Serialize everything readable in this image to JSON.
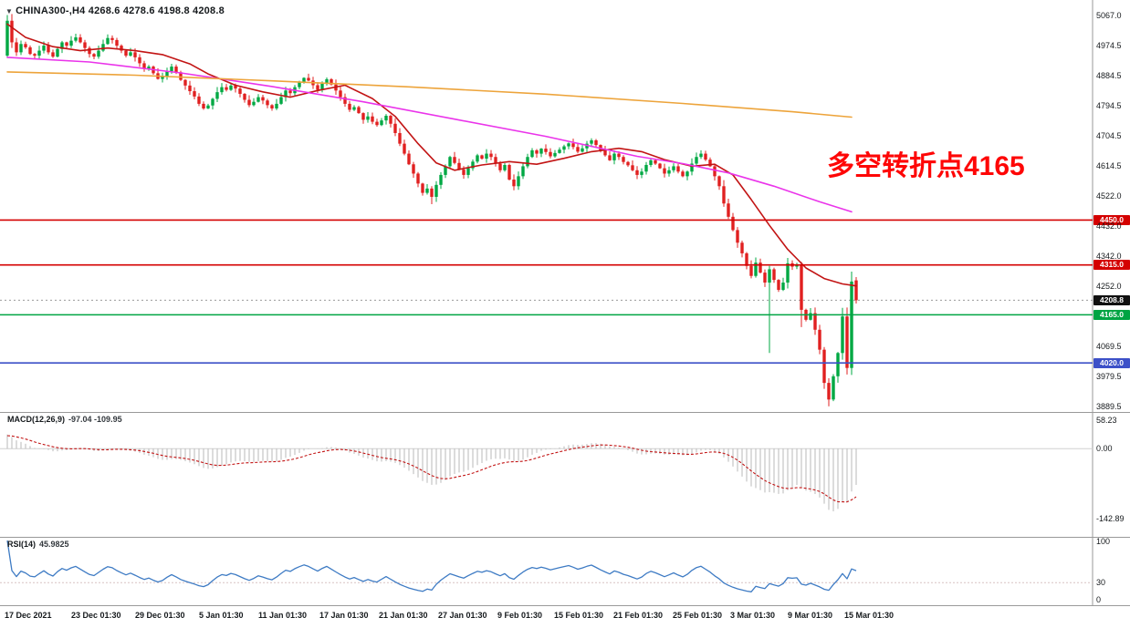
{
  "header": {
    "symbol_info": "CHINA300-,H4 4268.6 4278.6 4198.8 4208.8",
    "dropdown_icon": "triangle-down-icon"
  },
  "annotation": {
    "text": "多空转折点4165",
    "color": "#fe0606"
  },
  "chart_data": {
    "type": "candlestick",
    "symbol": "CHINA300-",
    "timeframe": "H4",
    "ohlc_current": {
      "open": 4268.6,
      "high": 4278.6,
      "low": 4198.8,
      "close": 4208.8
    },
    "ylim": [
      3878,
      5085
    ],
    "price_axis": {
      "labels": [
        "5067.0",
        "4974.5",
        "4884.5",
        "4794.5",
        "4704.5",
        "4614.5",
        "4522.0",
        "4432.0",
        "4342.0",
        "4252.0",
        "4069.5",
        "3979.5",
        "3889.5"
      ],
      "values": [
        5067,
        4974.5,
        4884.5,
        4794.5,
        4704.5,
        4614.5,
        4522,
        4432,
        4342,
        4252,
        4069.5,
        3979.5,
        3889.5
      ]
    },
    "candles": {
      "closes": [
        5050,
        4985,
        4955,
        4980,
        4970,
        4950,
        4945,
        4960,
        4975,
        4955,
        4942,
        4965,
        4985,
        4975,
        4990,
        5000,
        4985,
        4968,
        4950,
        4942,
        4960,
        4980,
        4998,
        4992,
        4975,
        4960,
        4945,
        4955,
        4940,
        4922,
        4905,
        4912,
        4892,
        4875,
        4882,
        4898,
        4912,
        4895,
        4872,
        4855,
        4838,
        4822,
        4800,
        4786,
        4795,
        4815,
        4835,
        4850,
        4842,
        4855,
        4846,
        4830,
        4812,
        4796,
        4806,
        4820,
        4810,
        4796,
        4786,
        4800,
        4820,
        4840,
        4832,
        4850,
        4865,
        4878,
        4870,
        4856,
        4842,
        4860,
        4874,
        4858,
        4840,
        4820,
        4800,
        4782,
        4790,
        4772,
        4752,
        4762,
        4746,
        4736,
        4750,
        4764,
        4740,
        4712,
        4680,
        4650,
        4618,
        4590,
        4560,
        4532,
        4545,
        4520,
        4556,
        4586,
        4612,
        4640,
        4622,
        4602,
        4586,
        4606,
        4626,
        4645,
        4635,
        4650,
        4640,
        4620,
        4600,
        4616,
        4572,
        4552,
        4582,
        4612,
        4640,
        4660,
        4650,
        4665,
        4655,
        4642,
        4652,
        4662,
        4672,
        4681,
        4670,
        4656,
        4666,
        4680,
        4690,
        4676,
        4660,
        4645,
        4630,
        4650,
        4640,
        4625,
        4615,
        4600,
        4586,
        4596,
        4616,
        4630,
        4620,
        4606,
        4590,
        4600,
        4612,
        4596,
        4582,
        4596,
        4620,
        4640,
        4650,
        4632,
        4612,
        4582,
        4552,
        4500,
        4460,
        4420,
        4382,
        4350,
        4312,
        4282,
        4322,
        4292,
        4262,
        4302,
        4270,
        4240,
        4262,
        4320,
        4310,
        4315,
        4180,
        4150,
        4170,
        4120,
        4060,
        3960,
        3910,
        3980,
        4050,
        4160,
        4005,
        4265,
        4208.8
      ],
      "overrides": {
        "0": [
          4945,
          5067,
          4938,
          5050
        ],
        "93": [
          4545,
          4552,
          4498,
          4520
        ],
        "167": [
          4262,
          4312,
          4050,
          4302
        ],
        "174": [
          4315,
          4324,
          4128,
          4180
        ],
        "179": [
          4060,
          4068,
          3942,
          3960
        ],
        "180": [
          3960,
          3974,
          3889.5,
          3910
        ],
        "186": [
          4268.6,
          4278.6,
          4198.8,
          4208.8
        ]
      }
    },
    "levels": [
      {
        "price": 4450,
        "label": "4450.0",
        "color": "#d40000",
        "type": "resistance"
      },
      {
        "price": 4315,
        "label": "4315.0",
        "color": "#d40000",
        "type": "resistance"
      },
      {
        "price": 4165,
        "label": "4165.0",
        "color": "#00a443",
        "type": "support"
      },
      {
        "price": 4020,
        "label": "4020.0",
        "color": "#3c50c8",
        "type": "support"
      }
    ],
    "current_price": {
      "value": 4208.8,
      "label": "4208.8",
      "tag_color": "#101010"
    },
    "moving_averages": [
      {
        "name": "fast-ma",
        "color": "#c21414",
        "points": [
          [
            0,
            5040
          ],
          [
            4,
            5000
          ],
          [
            10,
            4972
          ],
          [
            16,
            4960
          ],
          [
            22,
            4968
          ],
          [
            28,
            4960
          ],
          [
            34,
            4948
          ],
          [
            40,
            4920
          ],
          [
            44,
            4890
          ],
          [
            50,
            4856
          ],
          [
            56,
            4836
          ],
          [
            62,
            4820
          ],
          [
            68,
            4840
          ],
          [
            74,
            4856
          ],
          [
            80,
            4816
          ],
          [
            85,
            4762
          ],
          [
            90,
            4680
          ],
          [
            94,
            4622
          ],
          [
            98,
            4600
          ],
          [
            104,
            4616
          ],
          [
            110,
            4626
          ],
          [
            116,
            4618
          ],
          [
            122,
            4636
          ],
          [
            128,
            4656
          ],
          [
            134,
            4666
          ],
          [
            139,
            4656
          ],
          [
            144,
            4632
          ],
          [
            150,
            4612
          ],
          [
            155,
            4618
          ],
          [
            159,
            4586
          ],
          [
            163,
            4512
          ],
          [
            167,
            4434
          ],
          [
            171,
            4362
          ],
          [
            175,
            4306
          ],
          [
            179,
            4274
          ],
          [
            183,
            4258
          ],
          [
            186,
            4252
          ]
        ]
      },
      {
        "name": "medium-ma",
        "color": "#ea34ea",
        "points": [
          [
            0,
            4940
          ],
          [
            18,
            4926
          ],
          [
            38,
            4893
          ],
          [
            58,
            4852
          ],
          [
            78,
            4806
          ],
          [
            98,
            4754
          ],
          [
            118,
            4702
          ],
          [
            138,
            4642
          ],
          [
            148,
            4620
          ],
          [
            158,
            4592
          ],
          [
            168,
            4552
          ],
          [
            178,
            4505
          ],
          [
            185,
            4475
          ]
        ]
      },
      {
        "name": "slow-ma",
        "color": "#eda43b",
        "points": [
          [
            0,
            4896
          ],
          [
            28,
            4886
          ],
          [
            58,
            4869
          ],
          [
            88,
            4851
          ],
          [
            118,
            4829
          ],
          [
            148,
            4801
          ],
          [
            172,
            4776
          ],
          [
            185,
            4760
          ]
        ]
      }
    ],
    "colors": {
      "up": "#00a843",
      "down": "#e02020"
    },
    "indicators": {
      "macd": {
        "label": "MACD(12,26,9)",
        "values_text": "-97.04 -109.95",
        "params": [
          12,
          26,
          9
        ],
        "axis_labels": [
          "58.23",
          "0.00",
          "-142.89"
        ],
        "axis_max": 58.23,
        "axis_min": -142.89,
        "histogram_color": "#b9b9b9",
        "signal_color": "#c21414"
      },
      "rsi": {
        "label": "RSI(14)",
        "value_text": "45.9825",
        "period": 14,
        "axis_labels": [
          "100",
          "30",
          "0"
        ],
        "level": 30,
        "line_color": "#3e7bc4"
      }
    },
    "time_axis": [
      "17 Dec 2021",
      "23 Dec 01:30",
      "29 Dec 01:30",
      "5 Jan 01:30",
      "11 Jan 01:30",
      "17 Jan 01:30",
      "21 Jan 01:30",
      "27 Jan 01:30",
      "9 Feb 01:30",
      "15 Feb 01:30",
      "21 Feb 01:30",
      "25 Feb 01:30",
      "3 Mar 01:30",
      "9 Mar 01:30",
      "15 Mar 01:30"
    ]
  }
}
